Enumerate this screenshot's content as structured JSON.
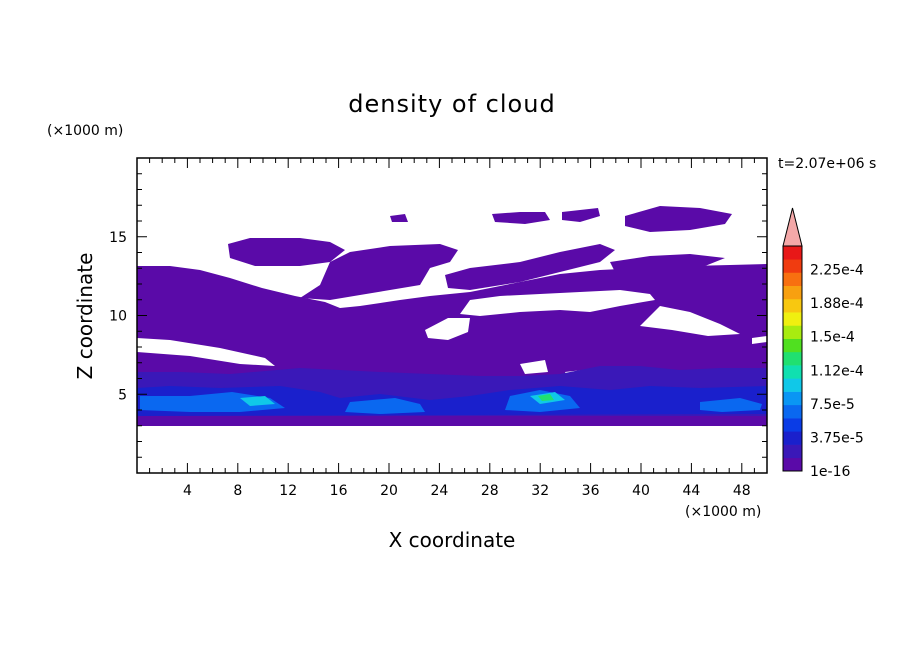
{
  "chart_data": {
    "type": "heatmap",
    "title": "density of cloud",
    "xlabel": "X coordinate",
    "ylabel": "Z coordinate",
    "x_unit": "(×1000 m)",
    "y_unit": "(×1000 m)",
    "time_label": "t=2.07e+06 s",
    "xlim": [
      0,
      50
    ],
    "ylim": [
      0,
      20
    ],
    "x_ticks": [
      "4",
      "8",
      "12",
      "16",
      "20",
      "24",
      "28",
      "32",
      "36",
      "40",
      "44",
      "48"
    ],
    "y_ticks": [
      "5",
      "10",
      "15"
    ],
    "colorbar": {
      "labels": [
        "1e-16",
        "3.75e-5",
        "7.5e-5",
        "1.12e-4",
        "1.5e-4",
        "1.88e-4",
        "2.25e-4"
      ],
      "colors": [
        "#5a0aa8",
        "#3a18b8",
        "#1a20cc",
        "#0a3ce6",
        "#0a68f0",
        "#0a96f4",
        "#10c8e8",
        "#10e0b0",
        "#20e070",
        "#50e020",
        "#a8ec10",
        "#f0f010",
        "#f8c810",
        "#f8a010",
        "#f87010",
        "#f03c10",
        "#e81818"
      ],
      "extend_color": "#f4a8a8"
    },
    "grid": false,
    "legend_placement": "right"
  }
}
